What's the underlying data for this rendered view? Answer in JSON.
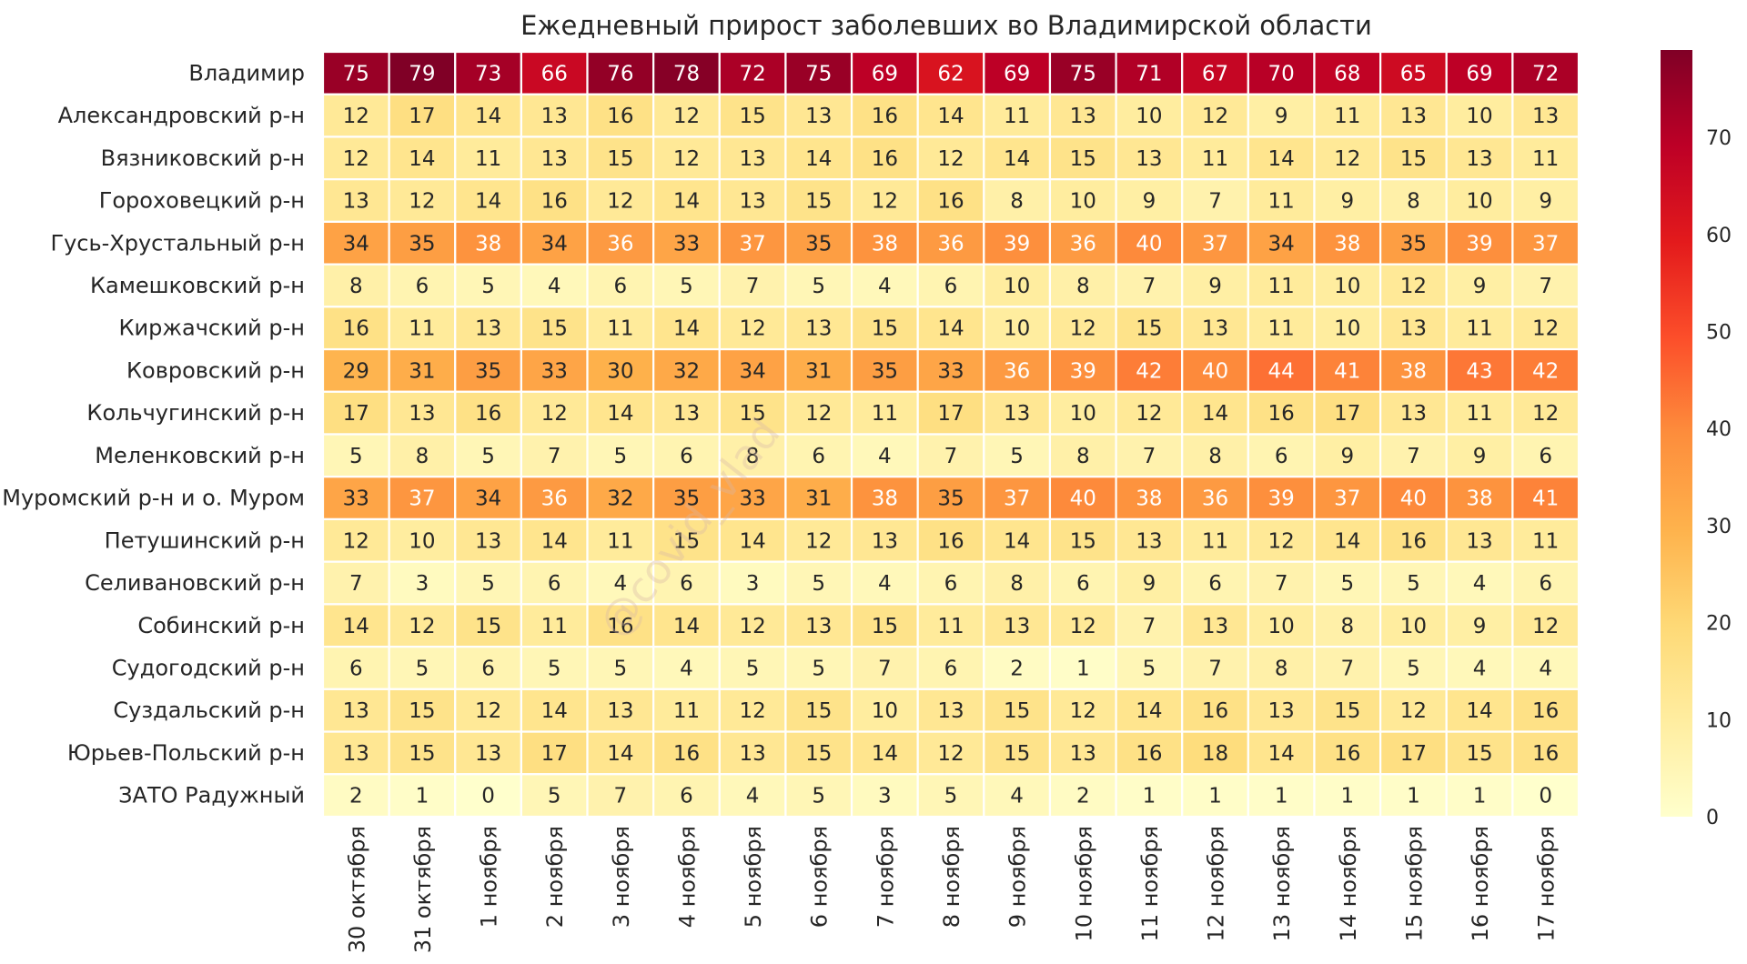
{
  "chart_data": {
    "type": "heatmap",
    "title": "Ежедневный прирост заболевших во Владимирской области",
    "watermark": "@covid_vlad",
    "rows": [
      "Владимир",
      "Александровский р-н",
      "Вязниковский р-н",
      "Гороховецкий р-н",
      "Гусь-Хрустальный р-н",
      "Камешковский р-н",
      "Киржачский р-н",
      "Ковровский р-н",
      "Кольчугинский р-н",
      "Меленковский р-н",
      "Муромский р-н и о. Муром",
      "Петушинский р-н",
      "Селивановский р-н",
      "Собинский р-н",
      "Судогодский р-н",
      "Суздальский р-н",
      "Юрьев-Польский р-н",
      "ЗАТО Радужный"
    ],
    "columns": [
      "30 октября",
      "31 октября",
      "1 ноября",
      "2 ноября",
      "3 ноября",
      "4 ноября",
      "5 ноября",
      "6 ноября",
      "7 ноября",
      "8 ноября",
      "9 ноября",
      "10 ноября",
      "11 ноября",
      "12 ноября",
      "13 ноября",
      "14 ноября",
      "15 ноября",
      "16 ноября",
      "17 ноября"
    ],
    "values": [
      [
        75,
        79,
        73,
        66,
        76,
        78,
        72,
        75,
        69,
        62,
        69,
        75,
        71,
        67,
        70,
        68,
        65,
        69,
        72
      ],
      [
        12,
        17,
        14,
        13,
        16,
        12,
        15,
        13,
        16,
        14,
        11,
        13,
        10,
        12,
        9,
        11,
        13,
        10,
        13
      ],
      [
        12,
        14,
        11,
        13,
        15,
        12,
        13,
        14,
        16,
        12,
        14,
        15,
        13,
        11,
        14,
        12,
        15,
        13,
        11
      ],
      [
        13,
        12,
        14,
        16,
        12,
        14,
        13,
        15,
        12,
        16,
        8,
        10,
        9,
        7,
        11,
        9,
        8,
        10,
        9
      ],
      [
        34,
        35,
        38,
        34,
        36,
        33,
        37,
        35,
        38,
        36,
        39,
        36,
        40,
        37,
        34,
        38,
        35,
        39,
        37
      ],
      [
        8,
        6,
        5,
        4,
        6,
        5,
        7,
        5,
        4,
        6,
        10,
        8,
        7,
        9,
        11,
        10,
        12,
        9,
        7
      ],
      [
        16,
        11,
        13,
        15,
        11,
        14,
        12,
        13,
        15,
        14,
        10,
        12,
        15,
        13,
        11,
        10,
        13,
        11,
        12
      ],
      [
        29,
        31,
        35,
        33,
        30,
        32,
        34,
        31,
        35,
        33,
        36,
        39,
        42,
        40,
        44,
        41,
        38,
        43,
        42
      ],
      [
        17,
        13,
        16,
        12,
        14,
        13,
        15,
        12,
        11,
        17,
        13,
        10,
        12,
        14,
        16,
        17,
        13,
        11,
        12
      ],
      [
        5,
        8,
        5,
        7,
        5,
        6,
        8,
        6,
        4,
        7,
        5,
        8,
        7,
        8,
        6,
        9,
        7,
        9,
        6
      ],
      [
        33,
        37,
        34,
        36,
        32,
        35,
        33,
        31,
        38,
        35,
        37,
        40,
        38,
        36,
        39,
        37,
        40,
        38,
        41
      ],
      [
        12,
        10,
        13,
        14,
        11,
        15,
        14,
        12,
        13,
        16,
        14,
        15,
        13,
        11,
        12,
        14,
        16,
        13,
        11
      ],
      [
        7,
        3,
        5,
        6,
        4,
        6,
        3,
        5,
        4,
        6,
        8,
        6,
        9,
        6,
        7,
        5,
        5,
        4,
        6
      ],
      [
        14,
        12,
        15,
        11,
        16,
        14,
        12,
        13,
        15,
        11,
        13,
        12,
        7,
        13,
        10,
        8,
        10,
        9,
        12
      ],
      [
        6,
        5,
        6,
        5,
        5,
        4,
        5,
        5,
        7,
        6,
        2,
        1,
        5,
        7,
        8,
        7,
        5,
        4,
        4
      ],
      [
        13,
        15,
        12,
        14,
        13,
        11,
        12,
        15,
        10,
        13,
        15,
        12,
        14,
        16,
        13,
        15,
        12,
        14,
        16
      ],
      [
        13,
        15,
        13,
        17,
        14,
        16,
        13,
        15,
        14,
        12,
        15,
        13,
        16,
        18,
        14,
        16,
        17,
        15,
        16
      ],
      [
        2,
        1,
        0,
        5,
        7,
        6,
        4,
        5,
        3,
        5,
        4,
        2,
        1,
        1,
        1,
        1,
        1,
        1,
        0
      ]
    ],
    "colormap": "YlOrRd",
    "vmin": 0,
    "vmax": 79,
    "colorbar_ticks": [
      "0",
      "10",
      "20",
      "30",
      "40",
      "50",
      "60",
      "70"
    ],
    "grid": false,
    "legend": "colorbar right"
  }
}
